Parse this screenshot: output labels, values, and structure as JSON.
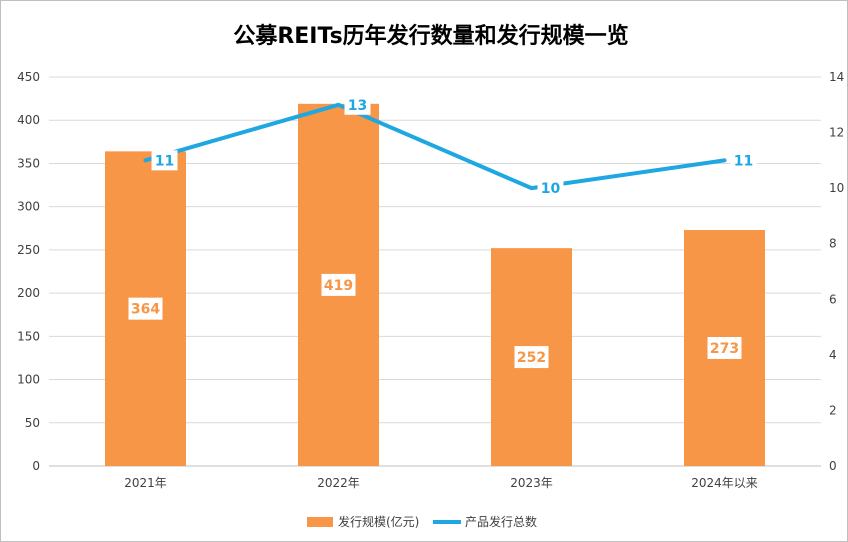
{
  "chart_data": {
    "type": "bar",
    "title": "公募REITs历年发行数量和发行规模一览",
    "categories": [
      "2021年",
      "2022年",
      "2023年",
      "2024年以来"
    ],
    "series": [
      {
        "name": "发行规模(亿元)",
        "type": "bar",
        "axis": "left",
        "values": [
          364,
          419,
          252,
          273
        ]
      },
      {
        "name": "产品发行总数",
        "type": "line",
        "axis": "right",
        "values": [
          11,
          13,
          10,
          11
        ]
      }
    ],
    "y_left": {
      "ylim": [
        0,
        450
      ],
      "ticks": [
        "0",
        "50",
        "100",
        "150",
        "200",
        "250",
        "300",
        "350",
        "400",
        "450"
      ]
    },
    "y_right": {
      "ylim": [
        0,
        14
      ],
      "ticks": [
        "0",
        "2",
        "4",
        "6",
        "8",
        "10",
        "12",
        "14"
      ]
    },
    "grid": true,
    "legend": "bottom-center",
    "colors": {
      "bar": "#f79646",
      "line": "#1ea7e1",
      "grid": "#d9d9d9",
      "axis_text": "#404040"
    }
  }
}
